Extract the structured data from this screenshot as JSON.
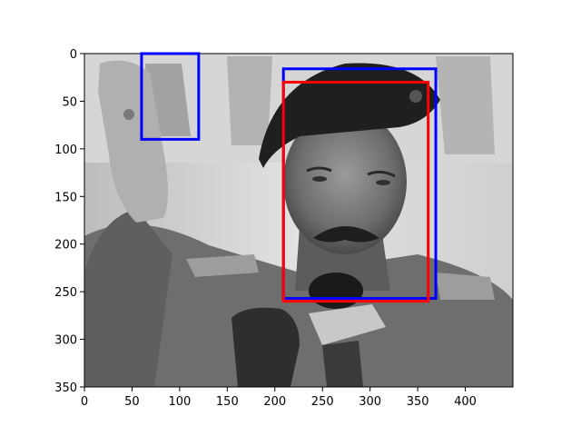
{
  "chart_data": {
    "type": "image",
    "image_description_shapes": "grayscale photo placeholder",
    "xlim": [
      0,
      450
    ],
    "ylim": [
      350,
      0
    ],
    "x_ticks": [
      0,
      50,
      100,
      150,
      200,
      250,
      300,
      350,
      400
    ],
    "y_ticks": [
      0,
      50,
      100,
      150,
      200,
      250,
      300,
      350
    ],
    "x_tick_labels": [
      "0",
      "50",
      "100",
      "150",
      "200",
      "250",
      "300",
      "350",
      "400"
    ],
    "y_tick_labels": [
      "0",
      "50",
      "100",
      "150",
      "200",
      "250",
      "300",
      "350"
    ],
    "boxes": [
      {
        "color": "#0000ff",
        "x0": 60,
        "y0": 0,
        "x1": 120,
        "y1": 90
      },
      {
        "color": "#0000ff",
        "x0": 209,
        "y0": 16,
        "x1": 369,
        "y1": 257
      },
      {
        "color": "#ff0000",
        "x0": 209,
        "y0": 30,
        "x1": 361,
        "y1": 260
      }
    ],
    "grid": false,
    "legend": "none"
  }
}
